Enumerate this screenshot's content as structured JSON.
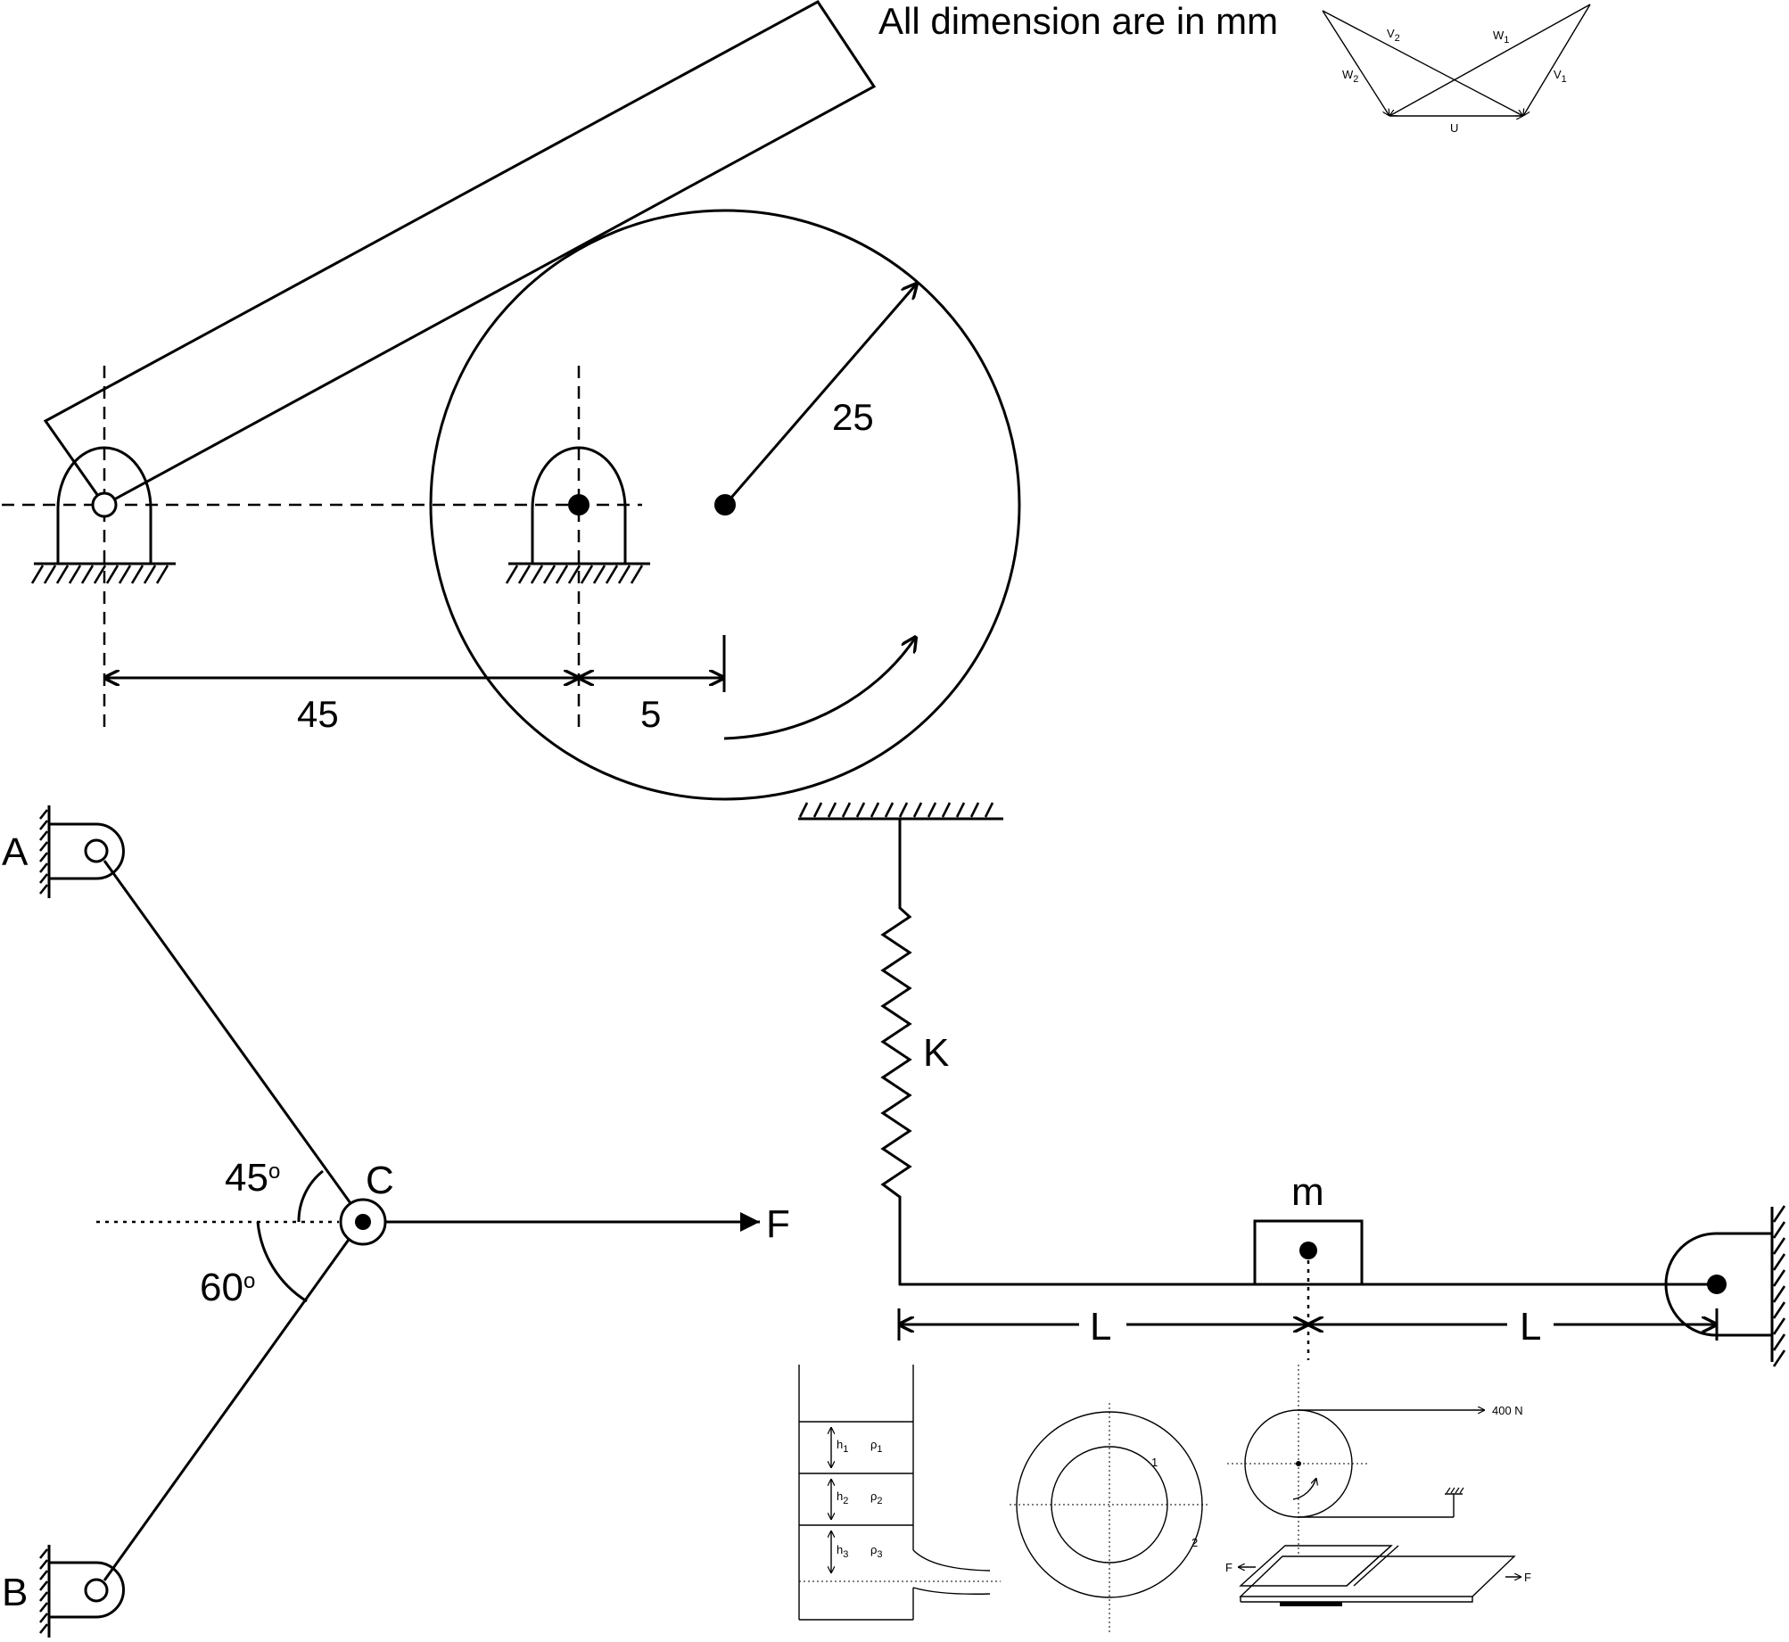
{
  "header": {
    "note": "All dimension are in mm"
  },
  "velocity_triangle": {
    "labels": {
      "v2": "V",
      "v2_sub": "2",
      "w1": "W",
      "w1_sub": "1",
      "w2": "W",
      "w2_sub": "2",
      "v1": "V",
      "v1_sub": "1",
      "u": "U"
    }
  },
  "cam_mechanism": {
    "radius_label": "25",
    "span_label": "45",
    "offset_label": "5"
  },
  "truss": {
    "label_a": "A",
    "label_b": "B",
    "label_c": "C",
    "label_f": "F",
    "angle_top": "45",
    "angle_bottom": "60",
    "degree_mark": "o"
  },
  "spring_beam": {
    "spring_label": "K",
    "mass_label": "m",
    "left_length": "L",
    "right_length": "L"
  },
  "manometer": {
    "h1": "h",
    "h1_sub": "1",
    "rho1": "ρ",
    "rho1_sub": "1",
    "h2": "h",
    "h2_sub": "2",
    "rho2": "ρ",
    "rho2_sub": "2",
    "h3": "h",
    "h3_sub": "3",
    "rho3": "ρ",
    "rho3_sub": "3"
  },
  "concentric_circles": {
    "inner_label": "1",
    "outer_label": "2"
  },
  "belt_pulley": {
    "force_label": "400 N"
  },
  "lap_joint": {
    "left_force": "F",
    "right_force": "F"
  }
}
